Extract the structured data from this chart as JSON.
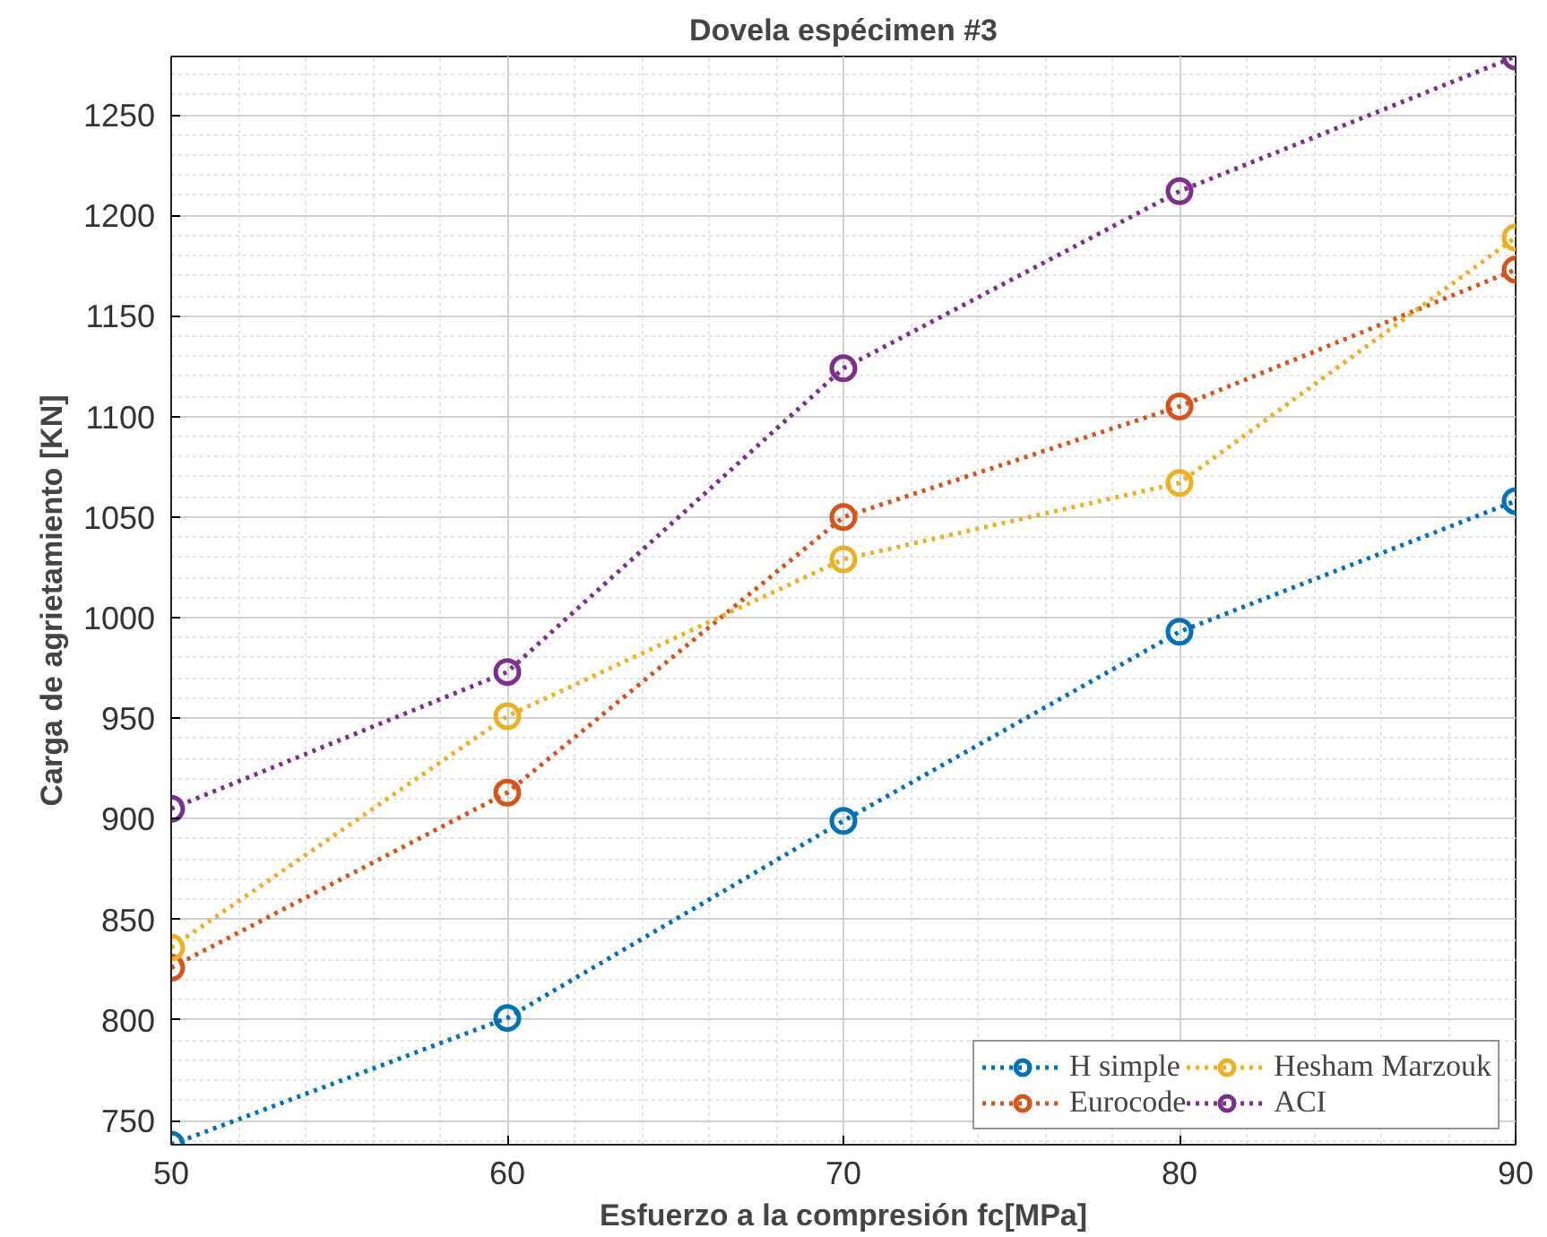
{
  "chart_data": {
    "type": "line",
    "title": "Dovela espécimen #3",
    "xlabel": "Esfuerzo a la compresión fc[MPa]",
    "ylabel": "Carga de agrietamiento [KN]",
    "x": [
      50,
      60,
      70,
      80,
      90
    ],
    "series": [
      {
        "name": "H simple",
        "color": "#0072bd",
        "values": [
          738,
          801,
          899,
          993,
          1058
        ]
      },
      {
        "name": "Eurocode",
        "color": "#d95319",
        "values": [
          826,
          913,
          1050,
          1105,
          1173
        ]
      },
      {
        "name": "Hesham Marzouk",
        "color": "#edb120",
        "values": [
          836,
          951,
          1029,
          1067,
          1189
        ]
      },
      {
        "name": "ACI",
        "color": "#7e2f8e",
        "values": [
          905,
          973,
          1124,
          1212,
          1279
        ]
      }
    ],
    "xlim": [
      50,
      90
    ],
    "xticks": [
      50,
      60,
      70,
      80,
      90
    ],
    "ylim": [
      738,
      1279
    ],
    "yticks": [
      750,
      800,
      850,
      900,
      950,
      1000,
      1050,
      1100,
      1150,
      1200,
      1250
    ],
    "grid": true,
    "legend": "bottom right",
    "marker": "circle",
    "line_style": "dotted"
  }
}
